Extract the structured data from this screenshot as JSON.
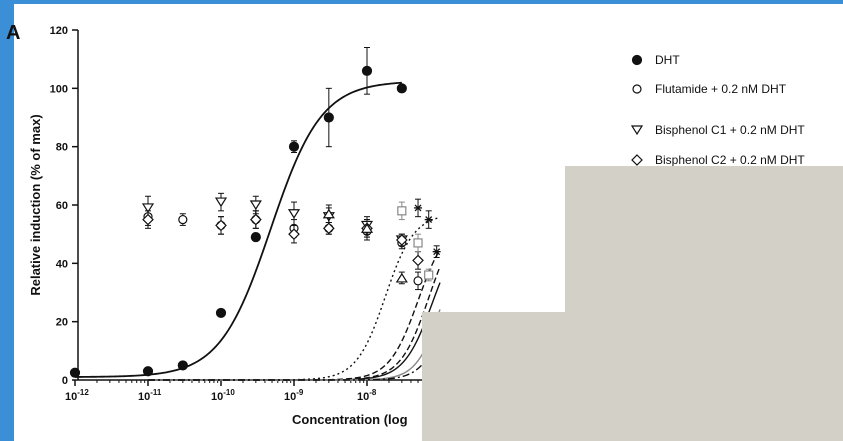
{
  "panel_label": "A",
  "chart_data": {
    "type": "scatter",
    "title": "",
    "xlabel": "Concentration (log",
    "ylabel": "Relative induction (% of max)",
    "xscale": "log",
    "xlim": [
      1e-12,
      1e-07
    ],
    "ylim": [
      0,
      120
    ],
    "grid": false,
    "x_ticks": [
      {
        "base": "10",
        "exp": "-12",
        "value": 1e-12
      },
      {
        "base": "10",
        "exp": "-11",
        "value": 1e-11
      },
      {
        "base": "10",
        "exp": "-10",
        "value": 1e-10
      },
      {
        "base": "10",
        "exp": "-9",
        "value": 1e-09
      },
      {
        "base": "10",
        "exp": "-8",
        "value": 1e-08
      }
    ],
    "y_ticks": [
      "0",
      "20",
      "40",
      "60",
      "80",
      "100",
      "120"
    ],
    "legend_position": "top-right",
    "series": [
      {
        "name": "DHT",
        "marker": "filled-circle",
        "line": "solid",
        "color": "#111111",
        "points": [
          {
            "x": 1e-12,
            "y": 2.5,
            "err": 0
          },
          {
            "x": 1e-11,
            "y": 3,
            "err": 0
          },
          {
            "x": 3e-11,
            "y": 5,
            "err": 0
          },
          {
            "x": 1e-10,
            "y": 23,
            "err": 0
          },
          {
            "x": 3e-10,
            "y": 49,
            "err": 0
          },
          {
            "x": 1e-09,
            "y": 80,
            "err": 2
          },
          {
            "x": 3e-09,
            "y": 90,
            "err": 10
          },
          {
            "x": 1e-08,
            "y": 106,
            "err": 8
          },
          {
            "x": 3e-08,
            "y": 100,
            "err": 0
          }
        ],
        "fit": {
          "bottom": 1,
          "top": 102.5,
          "logEC50": -9.32,
          "hill": 1.25,
          "from": 1e-12,
          "to": 3e-08
        }
      },
      {
        "name": "Flutamide + 0.2 nM DHT",
        "marker": "open-circle",
        "line": "solid",
        "color": "#111111",
        "points": [
          {
            "x": 1e-11,
            "y": 56,
            "err": 3
          },
          {
            "x": 3e-11,
            "y": 55,
            "err": 2
          },
          {
            "x": 1e-10,
            "y": 53,
            "err": 3
          },
          {
            "x": 3e-10,
            "y": 55,
            "err": 3
          },
          {
            "x": 1e-09,
            "y": 52,
            "err": 3
          },
          {
            "x": 3e-09,
            "y": 52,
            "err": 2
          },
          {
            "x": 1e-08,
            "y": 51,
            "err": 3
          },
          {
            "x": 3e-08,
            "y": 47,
            "err": 2
          },
          {
            "x": 5e-08,
            "y": 34,
            "err": 3
          }
        ],
        "fit": {
          "bottom": 0,
          "top": 53.5,
          "logEC50": -7.1,
          "hill": 2.2,
          "from": 1e-11,
          "to": 1e-07
        }
      },
      {
        "name": "Bisphenol C1 + 0.2 nM DHT",
        "marker": "open-triangle-down",
        "line": "dashed",
        "color": "#111111",
        "points": [
          {
            "x": 1e-11,
            "y": 59,
            "err": 4
          },
          {
            "x": 1e-10,
            "y": 61,
            "err": 3
          },
          {
            "x": 3e-10,
            "y": 60,
            "err": 3
          },
          {
            "x": 1e-09,
            "y": 57,
            "err": 4
          },
          {
            "x": 3e-09,
            "y": 56,
            "err": 3
          },
          {
            "x": 1e-08,
            "y": 53,
            "err": 3
          },
          {
            "x": 3e-08,
            "y": 48,
            "err": 2
          }
        ],
        "fit": {
          "bottom": 0,
          "top": 57,
          "logEC50": -7.15,
          "hill": 2.2,
          "from": 1e-11,
          "to": 1e-07
        }
      },
      {
        "name": "Bisphenol C2 + 0.2 nM DHT",
        "marker": "open-diamond",
        "line": "dashed",
        "color": "#111111",
        "points": [
          {
            "x": 1e-11,
            "y": 55,
            "err": 3
          },
          {
            "x": 1e-10,
            "y": 53,
            "err": 3
          },
          {
            "x": 3e-10,
            "y": 55,
            "err": 3
          },
          {
            "x": 1e-09,
            "y": 50,
            "err": 3
          },
          {
            "x": 3e-09,
            "y": 52,
            "err": 2
          },
          {
            "x": 1e-08,
            "y": 52,
            "err": 3
          },
          {
            "x": 3e-08,
            "y": 48,
            "err": 2
          },
          {
            "x": 5e-08,
            "y": 41,
            "err": 3
          }
        ],
        "fit": {
          "bottom": 0,
          "top": 54.5,
          "logEC50": -7.3,
          "hill": 2.2,
          "from": 1e-11,
          "to": 1e-07
        }
      },
      {
        "name": "",
        "marker": "open-triangle-up",
        "line": "dotted",
        "color": "#111111",
        "points": [
          {
            "x": 3e-09,
            "y": 57,
            "err": 3
          },
          {
            "x": 1e-08,
            "y": 52,
            "err": 3
          },
          {
            "x": 3e-08,
            "y": 35,
            "err": 2
          }
        ],
        "fit": {
          "bottom": 0,
          "top": 57,
          "logEC50": -7.75,
          "hill": 2.2,
          "from": 1e-11,
          "to": 1e-07
        }
      },
      {
        "name": "",
        "marker": "open-square",
        "line": "solid",
        "color": "#888888",
        "points": [
          {
            "x": 3e-08,
            "y": 58,
            "err": 3
          },
          {
            "x": 5e-08,
            "y": 47,
            "err": 3
          },
          {
            "x": 7e-08,
            "y": 36,
            "err": 2
          }
        ],
        "fit": {
          "bottom": 0,
          "top": 56.5,
          "logEC50": -6.95,
          "hill": 2.5,
          "from": 1e-11,
          "to": 1e-07
        }
      },
      {
        "name": "",
        "marker": "star",
        "line": "dash-dot",
        "color": "#111111",
        "points": [
          {
            "x": 5e-08,
            "y": 59,
            "err": 3
          },
          {
            "x": 7e-08,
            "y": 55,
            "err": 3
          },
          {
            "x": 9e-08,
            "y": 44,
            "err": 2
          }
        ],
        "fit": {
          "bottom": 0,
          "top": 56.5,
          "logEC50": -6.85,
          "hill": 2.5,
          "from": 1e-11,
          "to": 1e-07
        }
      }
    ]
  }
}
